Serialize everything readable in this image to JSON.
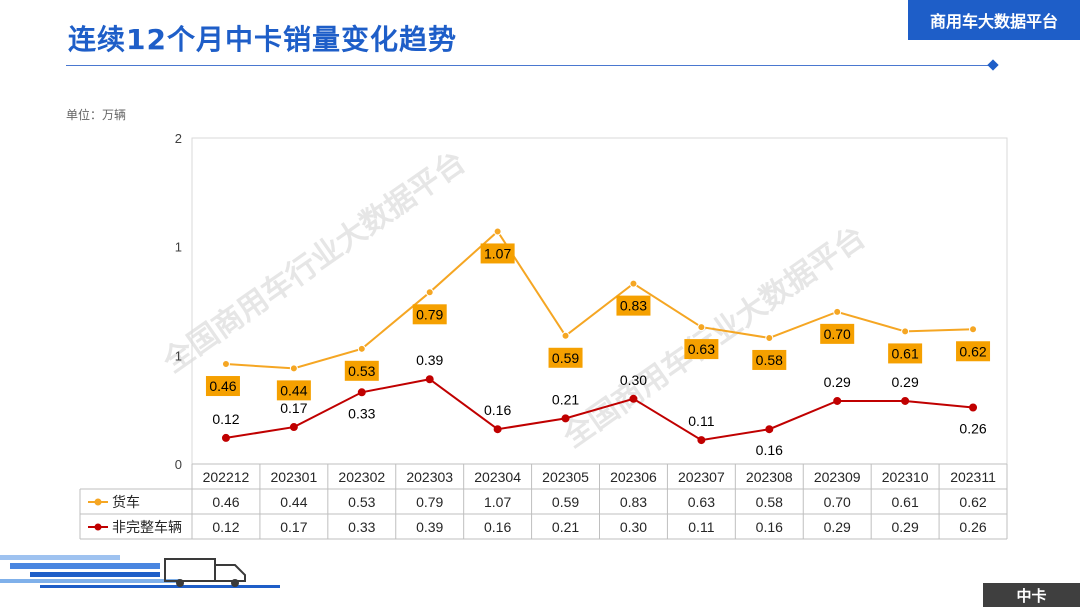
{
  "header": {
    "title": "连续12个月中卡销量变化趋势",
    "platform_badge": "商用车大数据平台"
  },
  "unit_label": "单位：万辆",
  "watermark": "全国商用车行业大数据平台",
  "footer": {
    "category_badge": "中卡"
  },
  "colors": {
    "accent": "#1e5ec8",
    "series_truck": "#f5a623",
    "series_incomplete": "#c00000",
    "label_box": "#f5a000"
  },
  "chart_data": {
    "type": "line",
    "categories": [
      "202212",
      "202301",
      "202302",
      "202303",
      "202304",
      "202305",
      "202306",
      "202307",
      "202308",
      "202309",
      "202310",
      "202311"
    ],
    "y_ticks": [
      "0",
      "1",
      "1",
      "2"
    ],
    "series": [
      {
        "name": "货车",
        "values": [
          0.46,
          0.44,
          0.53,
          0.79,
          1.07,
          0.59,
          0.83,
          0.63,
          0.58,
          0.7,
          0.61,
          0.62
        ],
        "labels": [
          "0.46",
          "0.44",
          "0.53",
          "0.79",
          "1.07",
          "0.59",
          "0.83",
          "0.63",
          "0.58",
          "0.70",
          "0.61",
          "0.62"
        ]
      },
      {
        "name": "非完整车辆",
        "values": [
          0.12,
          0.17,
          0.33,
          0.39,
          0.16,
          0.21,
          0.3,
          0.11,
          0.16,
          0.29,
          0.29,
          0.26
        ],
        "labels": [
          "0.12",
          "0.17",
          "0.33",
          "0.39",
          "0.16",
          "0.21",
          "0.30",
          "0.11",
          "0.16",
          "0.29",
          "0.29",
          "0.26"
        ]
      }
    ],
    "ylim": [
      0,
      1.5
    ],
    "legend": "data-table"
  }
}
